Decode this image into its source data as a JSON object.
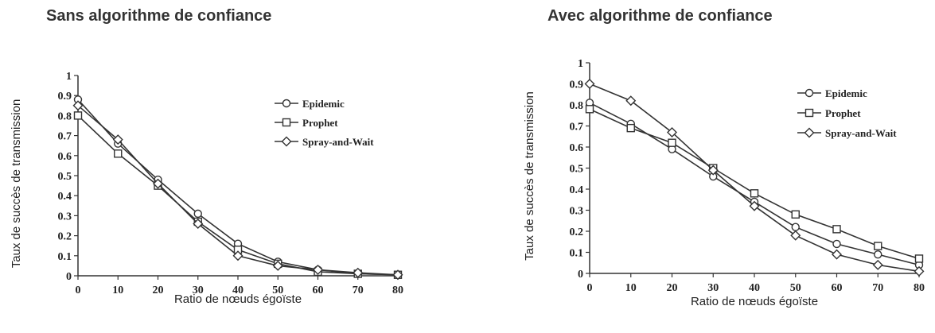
{
  "chart_data": [
    {
      "type": "line",
      "title": "Sans algorithme de confiance",
      "xlabel": "Ratio de nœuds égoïste",
      "ylabel": "Taux de succès de transmission",
      "x": [
        0,
        10,
        20,
        30,
        40,
        50,
        60,
        70,
        80
      ],
      "xlim": [
        0,
        80
      ],
      "ylim": [
        0,
        1
      ],
      "xticks": [
        "0",
        "10",
        "20",
        "30",
        "40",
        "50",
        "60",
        "70",
        "80"
      ],
      "yticks": [
        "0",
        "0.1",
        "0.2",
        "0.3",
        "0.4",
        "0.5",
        "0.6",
        "0.7",
        "0.8",
        "0.9",
        "1"
      ],
      "legend_position": "top-right",
      "grid": false,
      "series": [
        {
          "name": "Epidemic",
          "marker": "circle",
          "values": [
            0.88,
            0.66,
            0.48,
            0.31,
            0.16,
            0.07,
            0.03,
            0.01,
            0.005
          ]
        },
        {
          "name": "Prophet",
          "marker": "square",
          "values": [
            0.8,
            0.61,
            0.45,
            0.27,
            0.13,
            0.06,
            0.02,
            0.01,
            0.005
          ]
        },
        {
          "name": "Spray-and-Wait",
          "marker": "diamond",
          "values": [
            0.85,
            0.68,
            0.46,
            0.26,
            0.1,
            0.05,
            0.03,
            0.015,
            0.005
          ]
        }
      ]
    },
    {
      "type": "line",
      "title": "Avec algorithme de confiance",
      "xlabel": "Ratio de nœuds égoïste",
      "ylabel": "Taux de succès de transmission",
      "x": [
        0,
        10,
        20,
        30,
        40,
        50,
        60,
        70,
        80
      ],
      "xlim": [
        0,
        80
      ],
      "ylim": [
        0,
        1
      ],
      "xticks": [
        "0",
        "10",
        "20",
        "30",
        "40",
        "50",
        "60",
        "70",
        "80"
      ],
      "yticks": [
        "0",
        "0.1",
        "0.2",
        "0.3",
        "0.4",
        "0.5",
        "0.6",
        "0.7",
        "0.8",
        "0.9",
        "1"
      ],
      "legend_position": "top-right",
      "grid": false,
      "series": [
        {
          "name": "Epidemic",
          "marker": "circle",
          "values": [
            0.81,
            0.71,
            0.59,
            0.46,
            0.34,
            0.22,
            0.14,
            0.09,
            0.04
          ]
        },
        {
          "name": "Prophet",
          "marker": "square",
          "values": [
            0.78,
            0.69,
            0.62,
            0.5,
            0.38,
            0.28,
            0.21,
            0.13,
            0.07
          ]
        },
        {
          "name": "Spray-and-Wait",
          "marker": "diamond",
          "values": [
            0.9,
            0.82,
            0.67,
            0.49,
            0.32,
            0.18,
            0.09,
            0.04,
            0.01
          ]
        }
      ]
    }
  ]
}
